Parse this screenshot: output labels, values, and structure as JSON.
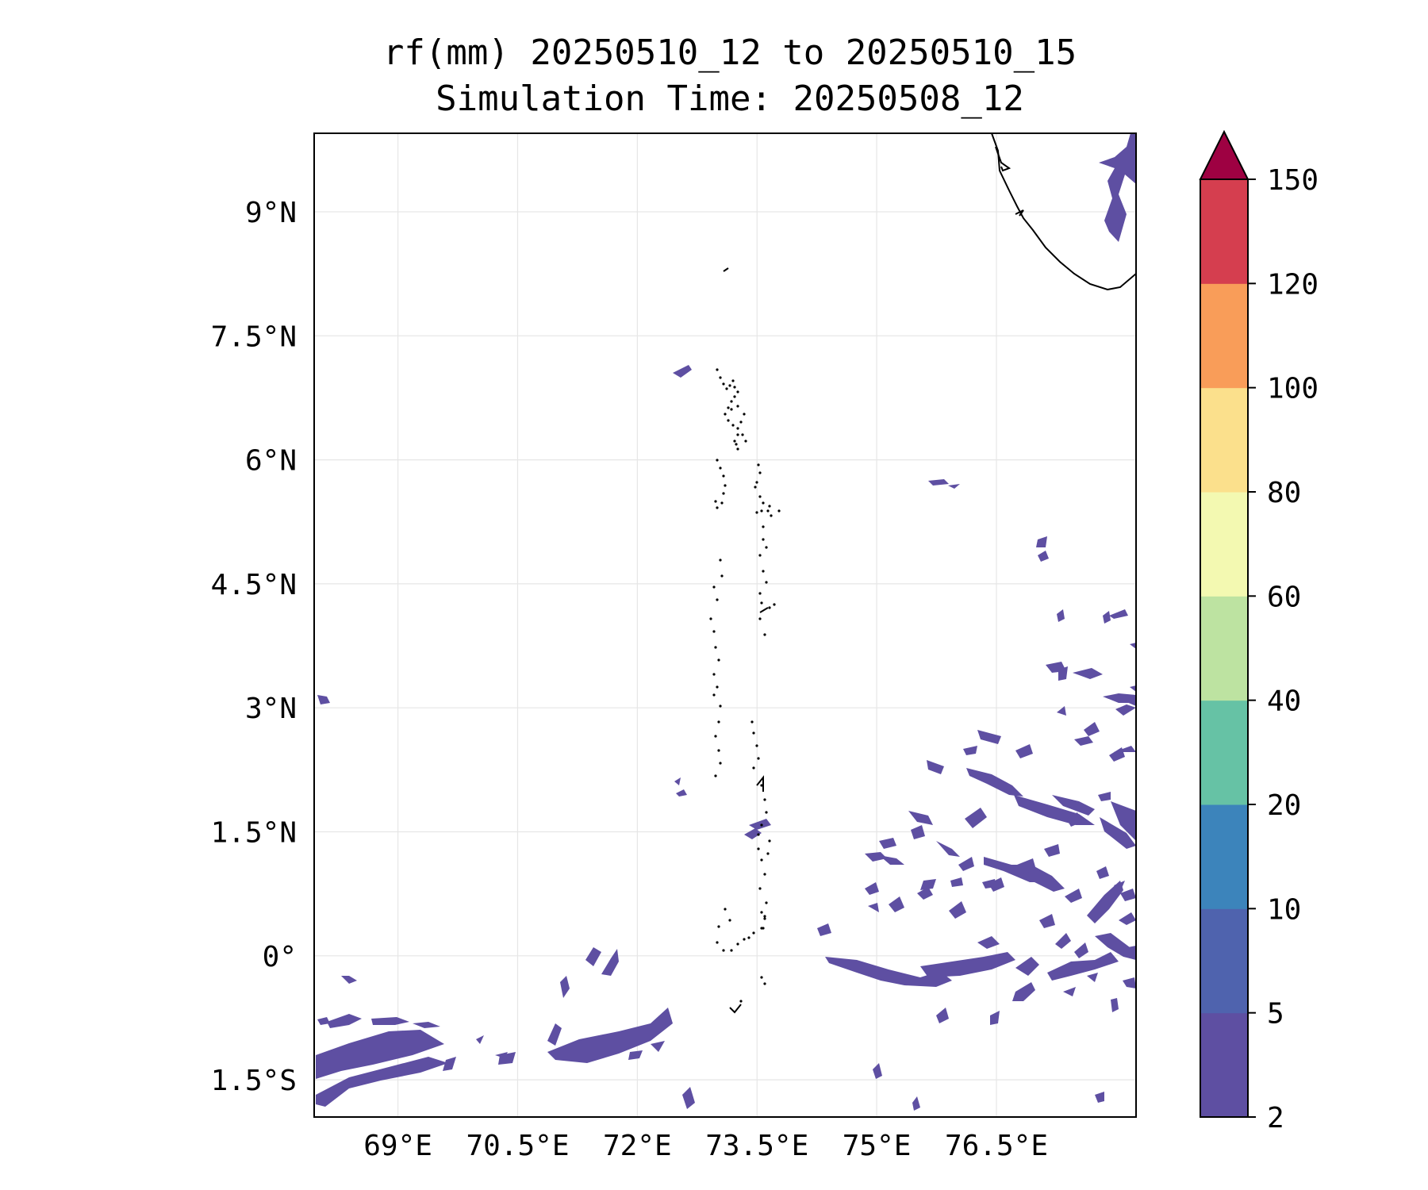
{
  "title": "rf(mm) 20250510_12 to 20250510_15",
  "subtitle": "Simulation Time: 20250508_12",
  "map": {
    "lon_range": [
      67.95,
      78.25
    ],
    "lat_range": [
      -1.95,
      9.95
    ],
    "lon_ticks": [
      69,
      70.5,
      72,
      73.5,
      75,
      76.5
    ],
    "lon_tick_labels": [
      "69°E",
      "70.5°E",
      "72°E",
      "73.5°E",
      "75°E",
      "76.5°E"
    ],
    "lat_ticks": [
      9,
      7.5,
      6,
      4.5,
      3,
      1.5,
      0,
      -1.5
    ],
    "lat_tick_labels": [
      "9°N",
      "7.5°N",
      "6°N",
      "4.5°N",
      "3°N",
      "1.5°N",
      "0°",
      "1.5°S"
    ],
    "grid": true
  },
  "colorbar": {
    "levels": [
      2,
      5,
      10,
      20,
      40,
      60,
      80,
      100,
      120,
      150
    ],
    "level_labels": [
      "2",
      "5",
      "10",
      "20",
      "40",
      "60",
      "80",
      "100",
      "120",
      "150"
    ],
    "colors": [
      "#5e4fa2",
      "#4f63ae",
      "#3c84bb",
      "#66c2a5",
      "#bde3a1",
      "#f3f9b1",
      "#fbe08c",
      "#f99d59",
      "#d53e4f"
    ],
    "extend_color": "#9e0142",
    "extend": "max"
  },
  "rain_fill": "#5e4fa2",
  "coast_color": "#000000"
}
